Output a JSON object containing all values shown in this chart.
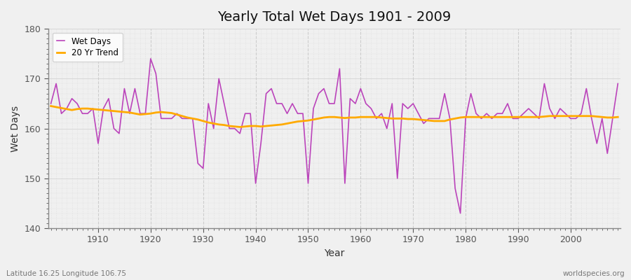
{
  "title": "Yearly Total Wet Days 1901 - 2009",
  "xlabel": "Year",
  "ylabel": "Wet Days",
  "subtitle_left": "Latitude 16.25 Longitude 106.75",
  "subtitle_right": "worldspecies.org",
  "fig_bg_color": "#f0f0f0",
  "plot_bg_color": "#f0f0f0",
  "wet_days_color": "#bb44bb",
  "trend_color": "#ffaa00",
  "ylim": [
    140,
    180
  ],
  "yticks": [
    140,
    150,
    160,
    170,
    180
  ],
  "years": [
    1901,
    1902,
    1903,
    1904,
    1905,
    1906,
    1907,
    1908,
    1909,
    1910,
    1911,
    1912,
    1913,
    1914,
    1915,
    1916,
    1917,
    1918,
    1919,
    1920,
    1921,
    1922,
    1923,
    1924,
    1925,
    1926,
    1927,
    1928,
    1929,
    1930,
    1931,
    1932,
    1933,
    1934,
    1935,
    1936,
    1937,
    1938,
    1939,
    1940,
    1941,
    1942,
    1943,
    1944,
    1945,
    1946,
    1947,
    1948,
    1949,
    1950,
    1951,
    1952,
    1953,
    1954,
    1955,
    1956,
    1957,
    1958,
    1959,
    1960,
    1961,
    1962,
    1963,
    1964,
    1965,
    1966,
    1967,
    1968,
    1969,
    1970,
    1971,
    1972,
    1973,
    1974,
    1975,
    1976,
    1977,
    1978,
    1979,
    1980,
    1981,
    1982,
    1983,
    1984,
    1985,
    1986,
    1987,
    1988,
    1989,
    1990,
    1991,
    1992,
    1993,
    1994,
    1995,
    1996,
    1997,
    1998,
    1999,
    2000,
    2001,
    2002,
    2003,
    2004,
    2005,
    2006,
    2007,
    2008,
    2009
  ],
  "wet_days": [
    165,
    169,
    163,
    164,
    166,
    165,
    163,
    163,
    164,
    157,
    164,
    166,
    160,
    159,
    168,
    163,
    168,
    163,
    163,
    174,
    171,
    162,
    162,
    162,
    163,
    162,
    162,
    162,
    153,
    152,
    165,
    160,
    170,
    165,
    160,
    160,
    159,
    163,
    163,
    149,
    157,
    167,
    168,
    165,
    165,
    163,
    165,
    163,
    163,
    149,
    164,
    167,
    168,
    165,
    165,
    172,
    149,
    166,
    165,
    168,
    165,
    164,
    162,
    163,
    160,
    165,
    150,
    165,
    164,
    165,
    163,
    161,
    162,
    162,
    162,
    167,
    162,
    148,
    143,
    162,
    167,
    163,
    162,
    163,
    162,
    163,
    163,
    165,
    162,
    162,
    163,
    164,
    163,
    162,
    169,
    164,
    162,
    164,
    163,
    162,
    162,
    163,
    168,
    162,
    157,
    162,
    155,
    162,
    169
  ],
  "trend": [
    164.5,
    164.3,
    164.1,
    163.9,
    163.7,
    163.9,
    164.0,
    164.0,
    163.9,
    163.8,
    163.7,
    163.6,
    163.5,
    163.4,
    163.3,
    163.2,
    163.0,
    162.8,
    162.9,
    163.0,
    163.2,
    163.3,
    163.2,
    163.1,
    162.8,
    162.5,
    162.2,
    162.0,
    161.8,
    161.5,
    161.2,
    161.0,
    160.8,
    160.7,
    160.5,
    160.4,
    160.3,
    160.4,
    160.5,
    160.5,
    160.4,
    160.5,
    160.6,
    160.7,
    160.8,
    161.0,
    161.2,
    161.4,
    161.5,
    161.6,
    161.8,
    162.0,
    162.2,
    162.3,
    162.3,
    162.2,
    162.1,
    162.2,
    162.2,
    162.3,
    162.3,
    162.3,
    162.3,
    162.2,
    162.1,
    162.0,
    162.0,
    162.0,
    161.9,
    161.9,
    161.8,
    161.7,
    161.6,
    161.5,
    161.5,
    161.5,
    161.8,
    162.0,
    162.2,
    162.3,
    162.3,
    162.3,
    162.3,
    162.3,
    162.3,
    162.3,
    162.3,
    162.3,
    162.3,
    162.3,
    162.3,
    162.3,
    162.3,
    162.3,
    162.4,
    162.5,
    162.5,
    162.5,
    162.5,
    162.5,
    162.5,
    162.5,
    162.5,
    162.5,
    162.4,
    162.3,
    162.2,
    162.2,
    162.3
  ]
}
